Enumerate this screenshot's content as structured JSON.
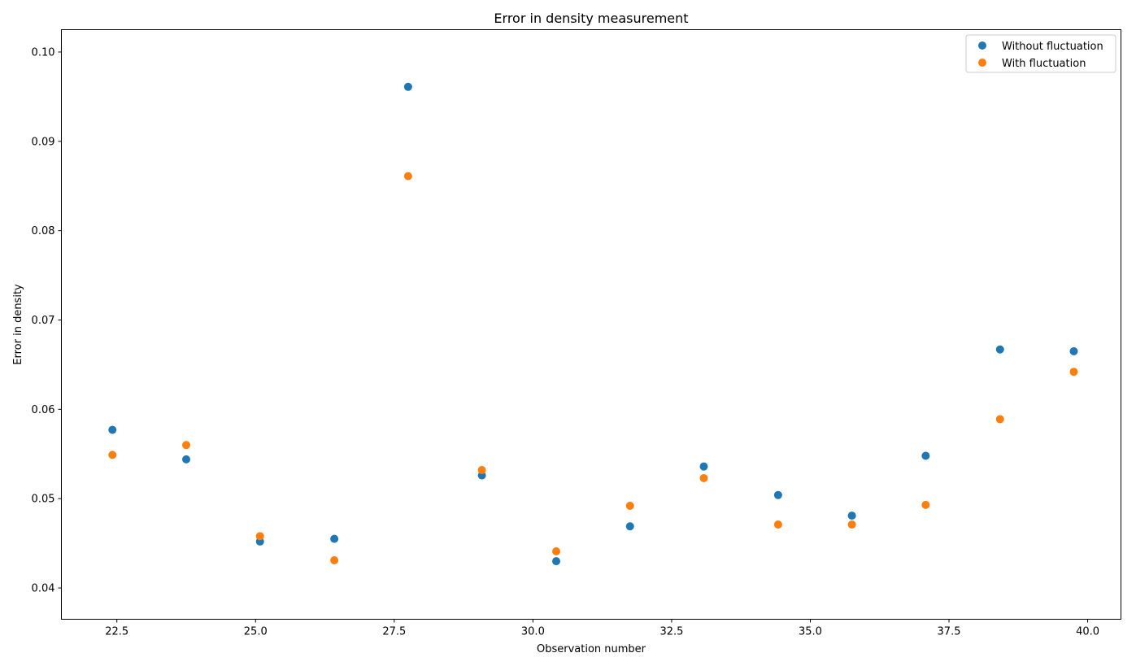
{
  "chart_data": {
    "type": "scatter",
    "title": "Error in density measurement",
    "xlabel": "Observation number",
    "ylabel": "Error in density",
    "xlim": [
      21.5,
      40.6
    ],
    "ylim": [
      0.0365,
      0.1025
    ],
    "x_ticks": [
      22.5,
      25.0,
      27.5,
      30.0,
      32.5,
      35.0,
      37.5,
      40.0
    ],
    "x_tick_labels": [
      "22.5",
      "25.0",
      "27.5",
      "30.0",
      "32.5",
      "35.0",
      "37.5",
      "40.0"
    ],
    "y_ticks": [
      0.04,
      0.05,
      0.06,
      0.07,
      0.08,
      0.09,
      0.1
    ],
    "y_tick_labels": [
      "0.04",
      "0.05",
      "0.06",
      "0.07",
      "0.08",
      "0.09",
      "0.10"
    ],
    "grid": false,
    "legend_position": "top-right",
    "x": [
      22.42,
      23.75,
      25.08,
      26.42,
      27.75,
      29.08,
      30.42,
      31.75,
      33.08,
      34.42,
      35.75,
      37.08,
      38.42,
      39.75
    ],
    "series": [
      {
        "name": "Without fluctuation",
        "color": "#1f77b4",
        "values": [
          0.0577,
          0.0544,
          0.0452,
          0.0455,
          0.0961,
          0.0526,
          0.043,
          0.0469,
          0.0536,
          0.0504,
          0.0481,
          0.0548,
          0.0667,
          0.0665
        ]
      },
      {
        "name": "With fluctuation",
        "color": "#ff7f0e",
        "values": [
          0.0549,
          0.056,
          0.0458,
          0.0431,
          0.0861,
          0.0532,
          0.0441,
          0.0492,
          0.0523,
          0.0471,
          0.0471,
          0.0493,
          0.0589,
          0.0642
        ]
      }
    ]
  }
}
